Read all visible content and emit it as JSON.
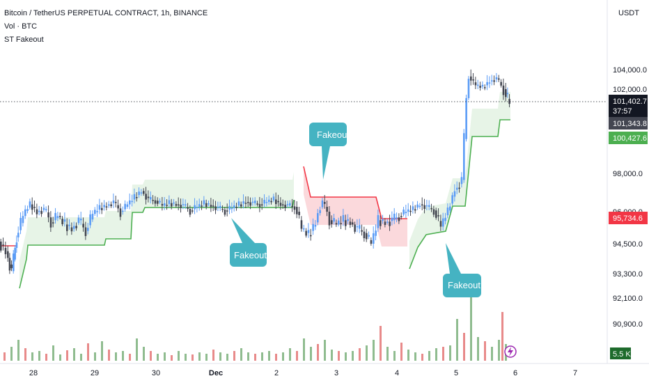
{
  "header": {
    "title": "Bitcoin / TetherUS PERPETUAL CONTRACT, 1h, BINANCE",
    "volume_label": "Vol · BTC",
    "indicator_label": "ST Fakeout",
    "currency": "USDT"
  },
  "price_tags": {
    "last_price": "101,402.7",
    "countdown": "37:57",
    "tag2": "101,343.8",
    "supertrend_up": "100,427.6",
    "supertrend_down": "95,734.6",
    "volume": "5.5 K"
  },
  "annotations": {
    "fakeout1": "Fakeout",
    "fakeout2": "Fakeout",
    "fakeout3": "Fakeout"
  },
  "colors": {
    "up": "#5b9cf6",
    "down": "#434651",
    "st_green": "#4caf50",
    "st_red": "#f23645",
    "fill_green": "#e4f3e4",
    "fill_red": "#fbd5d8",
    "vol_up": "#8fbc8f",
    "vol_down": "#e88a8a",
    "callout": "#45b3c2"
  },
  "chart_data": {
    "type": "candlestick",
    "title": "Bitcoin / TetherUS PERPETUAL CONTRACT, 1h, BINANCE",
    "y_ticks": [
      "104,000.0",
      "102,000.0",
      "98,000.0",
      "96,000.0",
      "94,500.0",
      "93,300.0",
      "92,100.0",
      "90,900.0"
    ],
    "x_ticks": [
      "28",
      "29",
      "30",
      "Dec",
      "2",
      "3",
      "4",
      "5",
      "6",
      "7"
    ],
    "grid": false,
    "close_path": [
      [
        0,
        94.6
      ],
      [
        10,
        94.2
      ],
      [
        18,
        93.4
      ],
      [
        25,
        94.8
      ],
      [
        35,
        95.8
      ],
      [
        45,
        96.6
      ],
      [
        55,
        96.0
      ],
      [
        65,
        96.2
      ],
      [
        75,
        95.5
      ],
      [
        85,
        95.8
      ],
      [
        95,
        95.4
      ],
      [
        105,
        95.2
      ],
      [
        115,
        95.6
      ],
      [
        125,
        95.1
      ],
      [
        135,
        95.9
      ],
      [
        145,
        96.3
      ],
      [
        155,
        96.5
      ],
      [
        165,
        96.8
      ],
      [
        175,
        96.0
      ],
      [
        185,
        96.6
      ],
      [
        195,
        97.2
      ],
      [
        205,
        97.7
      ],
      [
        215,
        97.0
      ],
      [
        225,
        96.9
      ],
      [
        235,
        96.5
      ],
      [
        245,
        96.7
      ],
      [
        255,
        96.6
      ],
      [
        265,
        96.5
      ],
      [
        275,
        96.1
      ],
      [
        285,
        96.4
      ],
      [
        295,
        96.7
      ],
      [
        305,
        96.5
      ],
      [
        315,
        96.3
      ],
      [
        325,
        96.1
      ],
      [
        335,
        96.3
      ],
      [
        345,
        96.6
      ],
      [
        355,
        96.8
      ],
      [
        365,
        96.7
      ],
      [
        375,
        96.6
      ],
      [
        385,
        96.8
      ],
      [
        395,
        97.0
      ],
      [
        405,
        96.6
      ],
      [
        415,
        96.5
      ],
      [
        425,
        96.4
      ],
      [
        435,
        95.2
      ],
      [
        445,
        94.9
      ],
      [
        455,
        95.5
      ],
      [
        465,
        96.8
      ],
      [
        475,
        95.6
      ],
      [
        485,
        95.4
      ],
      [
        495,
        95.6
      ],
      [
        505,
        95.5
      ],
      [
        515,
        95.2
      ],
      [
        525,
        95.0
      ],
      [
        535,
        94.5
      ],
      [
        545,
        95.6
      ],
      [
        555,
        95.5
      ],
      [
        565,
        95.6
      ],
      [
        575,
        95.8
      ],
      [
        585,
        96.0
      ],
      [
        595,
        96.2
      ],
      [
        605,
        96.6
      ],
      [
        615,
        96.4
      ],
      [
        625,
        96.1
      ],
      [
        635,
        95.3
      ],
      [
        645,
        96.1
      ],
      [
        655,
        97.8
      ],
      [
        665,
        98.3
      ],
      [
        675,
        103.3
      ],
      [
        685,
        102.4
      ],
      [
        695,
        102.2
      ],
      [
        705,
        102.8
      ],
      [
        715,
        103.1
      ],
      [
        725,
        102.0
      ],
      [
        733,
        101.4
      ]
    ],
    "volume_series": [
      [
        5,
        12
      ],
      [
        15,
        20
      ],
      [
        25,
        30
      ],
      [
        35,
        18
      ],
      [
        45,
        12
      ],
      [
        55,
        14
      ],
      [
        65,
        10
      ],
      [
        75,
        22
      ],
      [
        85,
        9
      ],
      [
        95,
        15
      ],
      [
        105,
        18
      ],
      [
        115,
        10
      ],
      [
        125,
        25
      ],
      [
        135,
        12
      ],
      [
        145,
        28
      ],
      [
        155,
        16
      ],
      [
        165,
        12
      ],
      [
        175,
        14
      ],
      [
        185,
        10
      ],
      [
        195,
        32
      ],
      [
        205,
        20
      ],
      [
        215,
        14
      ],
      [
        225,
        10
      ],
      [
        235,
        12
      ],
      [
        245,
        8
      ],
      [
        255,
        14
      ],
      [
        265,
        10
      ],
      [
        275,
        9
      ],
      [
        285,
        12
      ],
      [
        295,
        10
      ],
      [
        305,
        16
      ],
      [
        315,
        12
      ],
      [
        325,
        10
      ],
      [
        335,
        14
      ],
      [
        345,
        18
      ],
      [
        355,
        12
      ],
      [
        365,
        10
      ],
      [
        375,
        12
      ],
      [
        385,
        14
      ],
      [
        395,
        10
      ],
      [
        405,
        12
      ],
      [
        415,
        18
      ],
      [
        425,
        14
      ],
      [
        435,
        32
      ],
      [
        445,
        20
      ],
      [
        455,
        24
      ],
      [
        465,
        30
      ],
      [
        475,
        16
      ],
      [
        485,
        14
      ],
      [
        495,
        12
      ],
      [
        505,
        14
      ],
      [
        515,
        18
      ],
      [
        525,
        22
      ],
      [
        535,
        30
      ],
      [
        545,
        50
      ],
      [
        555,
        20
      ],
      [
        565,
        14
      ],
      [
        575,
        26
      ],
      [
        585,
        16
      ],
      [
        595,
        12
      ],
      [
        605,
        10
      ],
      [
        615,
        14
      ],
      [
        625,
        18
      ],
      [
        635,
        20
      ],
      [
        645,
        22
      ],
      [
        655,
        60
      ],
      [
        665,
        40
      ],
      [
        675,
        125
      ],
      [
        685,
        34
      ],
      [
        695,
        28
      ],
      [
        705,
        20
      ],
      [
        715,
        30
      ],
      [
        720,
        70
      ],
      [
        725,
        24
      ]
    ]
  }
}
